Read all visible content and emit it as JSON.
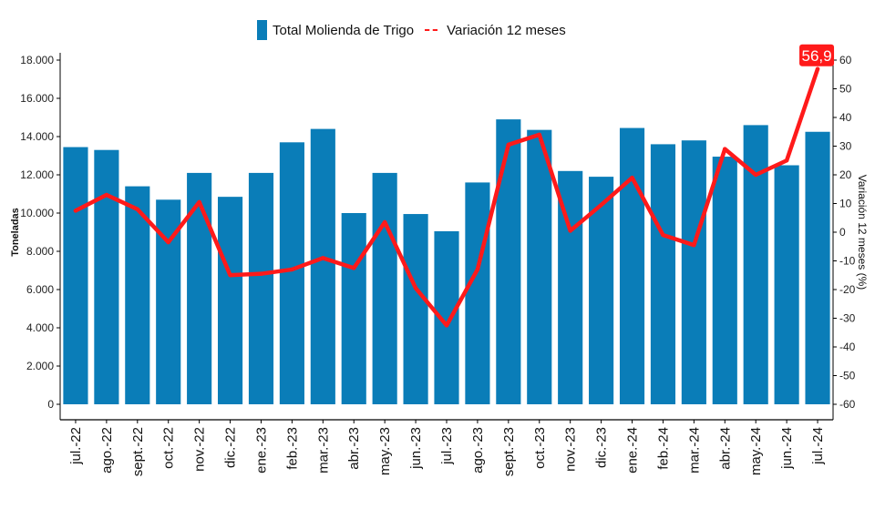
{
  "chart_data": {
    "type": "bar",
    "categories": [
      "jul.-22",
      "ago.-22",
      "sept.-22",
      "oct.-22",
      "nov.-22",
      "dic.-22",
      "ene.-23",
      "feb.-23",
      "mar.-23",
      "abr.-23",
      "may.-23",
      "jun.-23",
      "jul.-23",
      "ago.-23",
      "sept.-23",
      "oct.-23",
      "nov.-23",
      "dic.-23",
      "ene.-24",
      "feb.-24",
      "mar.-24",
      "abr.-24",
      "may.-24",
      "jun.-24",
      "jul.-24"
    ],
    "series": [
      {
        "name": "Total Molienda de Trigo",
        "type": "bar",
        "axis": "left",
        "color": "#0a7db8",
        "values": [
          13450,
          13300,
          11400,
          10700,
          12100,
          10850,
          12100,
          13700,
          14400,
          10000,
          12100,
          9950,
          9050,
          11600,
          14900,
          14350,
          12200,
          11900,
          14450,
          13600,
          13800,
          12950,
          14600,
          12500,
          14250
        ]
      },
      {
        "name": "Variación 12 meses",
        "type": "line",
        "axis": "right",
        "color": "#ff1a1a",
        "values": [
          7.5,
          13,
          8,
          -3.5,
          10.5,
          -15,
          -14.5,
          -13,
          -9,
          -12.5,
          3.5,
          -19.5,
          -32.5,
          -13,
          30.5,
          34,
          0.5,
          9.5,
          19,
          -1,
          -4.5,
          29,
          20,
          25,
          56.9
        ]
      }
    ],
    "ylabel": "Toneladas",
    "y2label": "Variación 12 meses (%)",
    "ylim": [
      0,
      18000
    ],
    "y2lim": [
      -60,
      60
    ],
    "yticks": [
      "0",
      "2.000",
      "4.000",
      "6.000",
      "8.000",
      "10.000",
      "12.000",
      "14.000",
      "16.000",
      "18.000"
    ],
    "y2ticks": [
      "-60",
      "-50",
      "-40",
      "-30",
      "-20",
      "-10",
      "0",
      "10",
      "20",
      "30",
      "40",
      "50",
      "60"
    ],
    "annotation": {
      "label": "56,9",
      "index": 24,
      "color": "#ff1a1a"
    },
    "legend": "top",
    "grid": false
  }
}
